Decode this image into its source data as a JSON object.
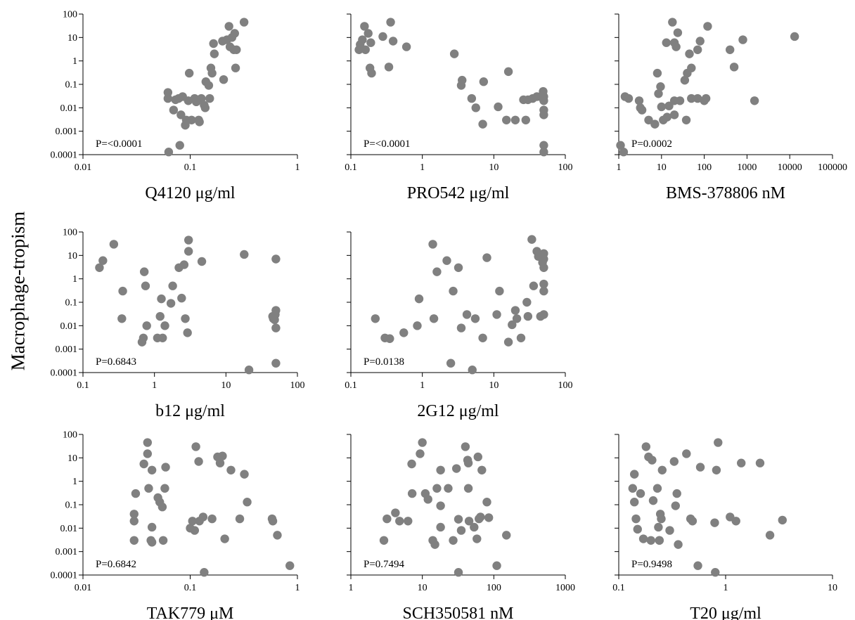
{
  "figure": {
    "ylabel": "Macrophage-tropism"
  },
  "chart_data": [
    {
      "type": "scatter",
      "xlabel": "Q4120 μg/ml",
      "annotation": "P=<0.0001",
      "xscale": "log",
      "yscale": "log",
      "xlim": [
        0.01,
        1
      ],
      "ylim": [
        0.0001,
        100
      ],
      "xticks": [
        "0.01",
        "0.1",
        "1"
      ],
      "yticks": [
        "0.0001",
        "0.001",
        "0.01",
        "0.1",
        "1",
        "10",
        "100"
      ],
      "points": [
        [
          0.062,
          0.045
        ],
        [
          0.062,
          0.025
        ],
        [
          0.063,
          0.00013
        ],
        [
          0.07,
          0.008
        ],
        [
          0.073,
          0.022
        ],
        [
          0.078,
          0.025
        ],
        [
          0.08,
          0.00025
        ],
        [
          0.082,
          0.005
        ],
        [
          0.085,
          0.03
        ],
        [
          0.09,
          0.0018
        ],
        [
          0.092,
          0.003
        ],
        [
          0.096,
          0.02
        ],
        [
          0.098,
          0.3
        ],
        [
          0.103,
          0.003
        ],
        [
          0.11,
          0.025
        ],
        [
          0.114,
          0.018
        ],
        [
          0.12,
          0.003
        ],
        [
          0.122,
          0.0025
        ],
        [
          0.127,
          0.025
        ],
        [
          0.135,
          0.013
        ],
        [
          0.138,
          0.01
        ],
        [
          0.14,
          0.13
        ],
        [
          0.149,
          0.09
        ],
        [
          0.152,
          0.025
        ],
        [
          0.156,
          0.5
        ],
        [
          0.16,
          0.3
        ],
        [
          0.165,
          5.5
        ],
        [
          0.168,
          2
        ],
        [
          0.2,
          7
        ],
        [
          0.205,
          0.16
        ],
        [
          0.22,
          8
        ],
        [
          0.23,
          30
        ],
        [
          0.235,
          4
        ],
        [
          0.245,
          10
        ],
        [
          0.255,
          3
        ],
        [
          0.26,
          15
        ],
        [
          0.265,
          0.5
        ],
        [
          0.27,
          3
        ],
        [
          0.318,
          45
        ]
      ]
    },
    {
      "type": "scatter",
      "xlabel": "PRO542 μg/ml",
      "annotation": "P=<0.0001",
      "xscale": "log",
      "yscale": "log",
      "xlim": [
        0.1,
        100
      ],
      "ylim": [
        0.0001,
        100
      ],
      "xticks": [
        "0.1",
        "1",
        "10",
        "100"
      ],
      "yticks": [
        "0.0001",
        "0.001",
        "0.01",
        "0.1",
        "1",
        "10",
        "100"
      ],
      "points": [
        [
          0.13,
          3
        ],
        [
          0.135,
          5
        ],
        [
          0.145,
          8
        ],
        [
          0.155,
          30
        ],
        [
          0.16,
          3
        ],
        [
          0.175,
          15
        ],
        [
          0.185,
          0.5
        ],
        [
          0.19,
          6
        ],
        [
          0.195,
          0.3
        ],
        [
          0.28,
          11
        ],
        [
          0.34,
          0.55
        ],
        [
          0.36,
          45
        ],
        [
          0.39,
          7
        ],
        [
          0.6,
          4
        ],
        [
          2.8,
          2
        ],
        [
          3.5,
          0.09
        ],
        [
          3.6,
          0.15
        ],
        [
          4.9,
          0.025
        ],
        [
          5.6,
          0.01
        ],
        [
          7,
          0.002
        ],
        [
          7.2,
          0.13
        ],
        [
          11.5,
          0.011
        ],
        [
          15,
          0.003
        ],
        [
          16,
          0.35
        ],
        [
          20,
          0.003
        ],
        [
          26,
          0.022
        ],
        [
          28,
          0.003
        ],
        [
          30,
          0.022
        ],
        [
          35,
          0.025
        ],
        [
          40,
          0.03
        ],
        [
          45,
          0.03
        ],
        [
          49,
          0.05
        ],
        [
          50,
          0.005
        ],
        [
          50,
          0.008
        ],
        [
          50,
          0.02
        ],
        [
          50,
          0.03
        ],
        [
          50,
          0.00025
        ],
        [
          50,
          0.00013
        ]
      ]
    },
    {
      "type": "scatter",
      "xlabel": "BMS-378806 nM",
      "annotation": "P=0.0002",
      "xscale": "log",
      "yscale": "log",
      "xlim": [
        1,
        100000
      ],
      "ylim": [
        0.0001,
        100
      ],
      "xticks": [
        "1",
        "10",
        "100",
        "1000",
        "10000",
        "100000"
      ],
      "yticks": [
        "0.0001",
        "0.001",
        "0.01",
        "0.1",
        "1",
        "10",
        "100"
      ],
      "points": [
        [
          1.1,
          0.00025
        ],
        [
          1.3,
          0.00013
        ],
        [
          1.4,
          0.03
        ],
        [
          1.7,
          0.025
        ],
        [
          3,
          0.02
        ],
        [
          3.2,
          0.01
        ],
        [
          3.5,
          0.008
        ],
        [
          5,
          0.003
        ],
        [
          7,
          0.002
        ],
        [
          8,
          0.3
        ],
        [
          8.5,
          0.04
        ],
        [
          9.5,
          0.08
        ],
        [
          10,
          0.011
        ],
        [
          11,
          0.003
        ],
        [
          13,
          6
        ],
        [
          13.5,
          0.004
        ],
        [
          15,
          0.012
        ],
        [
          18,
          45
        ],
        [
          20,
          6
        ],
        [
          20,
          0.02
        ],
        [
          20,
          0.005
        ],
        [
          22,
          4
        ],
        [
          24,
          16
        ],
        [
          27,
          0.02
        ],
        [
          35,
          0.15
        ],
        [
          38,
          0.003
        ],
        [
          40,
          0.3
        ],
        [
          45,
          2
        ],
        [
          50,
          0.5
        ],
        [
          50,
          0.025
        ],
        [
          70,
          3
        ],
        [
          70,
          0.025
        ],
        [
          80,
          7
        ],
        [
          100,
          0.02
        ],
        [
          110,
          0.025
        ],
        [
          120,
          30
        ],
        [
          400,
          3
        ],
        [
          500,
          0.55
        ],
        [
          800,
          8
        ],
        [
          1500,
          0.02
        ],
        [
          13000,
          11
        ]
      ]
    },
    {
      "type": "scatter",
      "xlabel": "b12 μg/ml",
      "annotation": "P=0.6843",
      "xscale": "log",
      "yscale": "log",
      "xlim": [
        0.1,
        100
      ],
      "ylim": [
        0.0001,
        100
      ],
      "xticks": [
        "0.1",
        "1",
        "10",
        "100"
      ],
      "yticks": [
        "0.0001",
        "0.001",
        "0.01",
        "0.1",
        "1",
        "10",
        "100"
      ],
      "points": [
        [
          0.17,
          3
        ],
        [
          0.19,
          6
        ],
        [
          0.27,
          30
        ],
        [
          0.35,
          0.02
        ],
        [
          0.36,
          0.3
        ],
        [
          0.67,
          0.002
        ],
        [
          0.7,
          0.003
        ],
        [
          0.72,
          2
        ],
        [
          0.75,
          0.5
        ],
        [
          0.78,
          0.01
        ],
        [
          1.1,
          0.003
        ],
        [
          1.2,
          0.025
        ],
        [
          1.25,
          0.14
        ],
        [
          1.3,
          0.003
        ],
        [
          1.4,
          0.01
        ],
        [
          1.7,
          0.09
        ],
        [
          1.8,
          0.5
        ],
        [
          2.2,
          3
        ],
        [
          2.4,
          0.15
        ],
        [
          2.6,
          4
        ],
        [
          2.7,
          0.02
        ],
        [
          2.9,
          0.005
        ],
        [
          3,
          15
        ],
        [
          3,
          45
        ],
        [
          4.6,
          5.5
        ],
        [
          18,
          11
        ],
        [
          21,
          0.00013
        ],
        [
          45,
          0.025
        ],
        [
          46,
          0.02
        ],
        [
          48,
          0.018
        ],
        [
          49,
          0.03
        ],
        [
          50,
          0.045
        ],
        [
          50,
          0.008
        ],
        [
          50,
          0.00025
        ],
        [
          50,
          7
        ]
      ]
    },
    {
      "type": "scatter",
      "xlabel": "2G12 μg/ml",
      "annotation": "P=0.0138",
      "xscale": "log",
      "yscale": "log",
      "xlim": [
        0.1,
        100
      ],
      "ylim": [
        0.0001,
        100
      ],
      "xticks": [
        "0.1",
        "1",
        "10",
        "100"
      ],
      "yticks": [
        "0.0001",
        "0.001",
        "0.01",
        "0.1",
        "1",
        "10",
        "100"
      ],
      "points": [
        [
          0.22,
          0.02
        ],
        [
          0.3,
          0.003
        ],
        [
          0.35,
          0.0028
        ],
        [
          0.55,
          0.005
        ],
        [
          0.85,
          0.01
        ],
        [
          0.9,
          0.14
        ],
        [
          1.4,
          30
        ],
        [
          1.45,
          0.02
        ],
        [
          1.6,
          2
        ],
        [
          2.2,
          6
        ],
        [
          2.5,
          0.00025
        ],
        [
          2.7,
          0.3
        ],
        [
          3.2,
          3
        ],
        [
          3.5,
          0.008
        ],
        [
          4.2,
          0.03
        ],
        [
          5,
          0.00013
        ],
        [
          5.5,
          0.02
        ],
        [
          7,
          0.003
        ],
        [
          8,
          8
        ],
        [
          11,
          0.03
        ],
        [
          12,
          0.3
        ],
        [
          16,
          0.002
        ],
        [
          18,
          0.011
        ],
        [
          20,
          0.045
        ],
        [
          21,
          0.02
        ],
        [
          24,
          0.003
        ],
        [
          29,
          0.1
        ],
        [
          30,
          0.025
        ],
        [
          34,
          48
        ],
        [
          36,
          0.5
        ],
        [
          40,
          15
        ],
        [
          42,
          9
        ],
        [
          45,
          0.025
        ],
        [
          48,
          5
        ],
        [
          50,
          12
        ],
        [
          50,
          7
        ],
        [
          50,
          0.03
        ],
        [
          50,
          0.3
        ],
        [
          50,
          0.6
        ],
        [
          50,
          3
        ]
      ]
    },
    {
      "type": "scatter",
      "xlabel": "TAK779 μM",
      "annotation": "P=0.6842",
      "xscale": "log",
      "yscale": "log",
      "xlim": [
        0.01,
        1
      ],
      "ylim": [
        0.0001,
        100
      ],
      "xticks": [
        "0.01",
        "0.1",
        "1"
      ],
      "yticks": [
        "0.0001",
        "0.001",
        "0.01",
        "0.1",
        "1",
        "10",
        "100"
      ],
      "points": [
        [
          0.03,
          0.003
        ],
        [
          0.03,
          0.02
        ],
        [
          0.03,
          0.04
        ],
        [
          0.031,
          0.3
        ],
        [
          0.037,
          5.5
        ],
        [
          0.04,
          45
        ],
        [
          0.04,
          15
        ],
        [
          0.041,
          0.5
        ],
        [
          0.043,
          0.003
        ],
        [
          0.044,
          3
        ],
        [
          0.044,
          0.0025
        ],
        [
          0.044,
          0.011
        ],
        [
          0.05,
          0.2
        ],
        [
          0.052,
          0.13
        ],
        [
          0.055,
          0.08
        ],
        [
          0.056,
          0.003
        ],
        [
          0.058,
          0.5
        ],
        [
          0.059,
          4
        ],
        [
          0.1,
          0.01
        ],
        [
          0.105,
          0.02
        ],
        [
          0.11,
          0.008
        ],
        [
          0.113,
          30
        ],
        [
          0.12,
          7
        ],
        [
          0.122,
          0.02
        ],
        [
          0.132,
          0.03
        ],
        [
          0.135,
          0.00013
        ],
        [
          0.16,
          0.025
        ],
        [
          0.18,
          11
        ],
        [
          0.19,
          6
        ],
        [
          0.2,
          12
        ],
        [
          0.21,
          0.0035
        ],
        [
          0.24,
          3
        ],
        [
          0.29,
          0.025
        ],
        [
          0.32,
          2
        ],
        [
          0.34,
          0.13
        ],
        [
          0.58,
          0.025
        ],
        [
          0.59,
          0.02
        ],
        [
          0.65,
          0.005
        ],
        [
          0.85,
          0.00025
        ]
      ]
    },
    {
      "type": "scatter",
      "xlabel": "SCH350581 nM",
      "annotation": "P=0.7494",
      "xscale": "log",
      "yscale": "log",
      "xlim": [
        1,
        1000
      ],
      "ylim": [
        0.0001,
        100
      ],
      "xticks": [
        "1",
        "10",
        "100",
        "1000"
      ],
      "yticks": [
        "0.0001",
        "0.001",
        "0.01",
        "0.1",
        "1",
        "10",
        "100"
      ],
      "points": [
        [
          2.9,
          0.003
        ],
        [
          3.2,
          0.025
        ],
        [
          4.2,
          0.045
        ],
        [
          4.8,
          0.02
        ],
        [
          6.3,
          0.02
        ],
        [
          7.1,
          5.5
        ],
        [
          7.2,
          0.3
        ],
        [
          9.3,
          15
        ],
        [
          10,
          45
        ],
        [
          11,
          0.3
        ],
        [
          12,
          0.17
        ],
        [
          14,
          0.003
        ],
        [
          15,
          0.002
        ],
        [
          16,
          0.5
        ],
        [
          18,
          3
        ],
        [
          18,
          0.011
        ],
        [
          18,
          0.09
        ],
        [
          23,
          0.5
        ],
        [
          27,
          0.003
        ],
        [
          30,
          3.5
        ],
        [
          32,
          0.024
        ],
        [
          35,
          0.008
        ],
        [
          40,
          30
        ],
        [
          43,
          8
        ],
        [
          44,
          6
        ],
        [
          44,
          0.5
        ],
        [
          45,
          0.02
        ],
        [
          53,
          0.011
        ],
        [
          58,
          0.0035
        ],
        [
          60,
          11
        ],
        [
          62,
          0.025
        ],
        [
          65,
          0.03
        ],
        [
          68,
          3
        ],
        [
          80,
          0.13
        ],
        [
          85,
          0.028
        ],
        [
          110,
          0.00025
        ],
        [
          150,
          0.005
        ],
        [
          32,
          0.00013
        ]
      ]
    },
    {
      "type": "scatter",
      "xlabel": "T20 μg/ml",
      "annotation": "P=0.9498",
      "xscale": "log",
      "yscale": "log",
      "xlim": [
        0.1,
        10
      ],
      "ylim": [
        0.0001,
        100
      ],
      "xticks": [
        "0.1",
        "1",
        "10"
      ],
      "yticks": [
        "0.0001",
        "0.001",
        "0.01",
        "0.1",
        "1",
        "10",
        "100"
      ],
      "points": [
        [
          0.135,
          0.5
        ],
        [
          0.14,
          0.13
        ],
        [
          0.14,
          2
        ],
        [
          0.145,
          0.025
        ],
        [
          0.15,
          0.009
        ],
        [
          0.16,
          0.3
        ],
        [
          0.17,
          0.0035
        ],
        [
          0.18,
          30
        ],
        [
          0.19,
          11
        ],
        [
          0.2,
          0.003
        ],
        [
          0.205,
          8
        ],
        [
          0.21,
          0.15
        ],
        [
          0.23,
          0.5
        ],
        [
          0.235,
          0.011
        ],
        [
          0.24,
          0.003
        ],
        [
          0.24,
          0.003
        ],
        [
          0.245,
          0.04
        ],
        [
          0.25,
          0.025
        ],
        [
          0.255,
          3
        ],
        [
          0.3,
          0.008
        ],
        [
          0.33,
          7
        ],
        [
          0.34,
          0.09
        ],
        [
          0.35,
          0.3
        ],
        [
          0.36,
          0.002
        ],
        [
          0.43,
          15
        ],
        [
          0.47,
          0.025
        ],
        [
          0.49,
          0.02
        ],
        [
          0.55,
          0.00025
        ],
        [
          0.58,
          4
        ],
        [
          0.79,
          0.017
        ],
        [
          0.8,
          0.00013
        ],
        [
          0.82,
          3
        ],
        [
          0.85,
          45
        ],
        [
          1.1,
          0.03
        ],
        [
          1.25,
          0.02
        ],
        [
          1.4,
          6
        ],
        [
          2.1,
          6
        ],
        [
          2.6,
          0.005
        ],
        [
          3.4,
          0.022
        ]
      ]
    }
  ]
}
